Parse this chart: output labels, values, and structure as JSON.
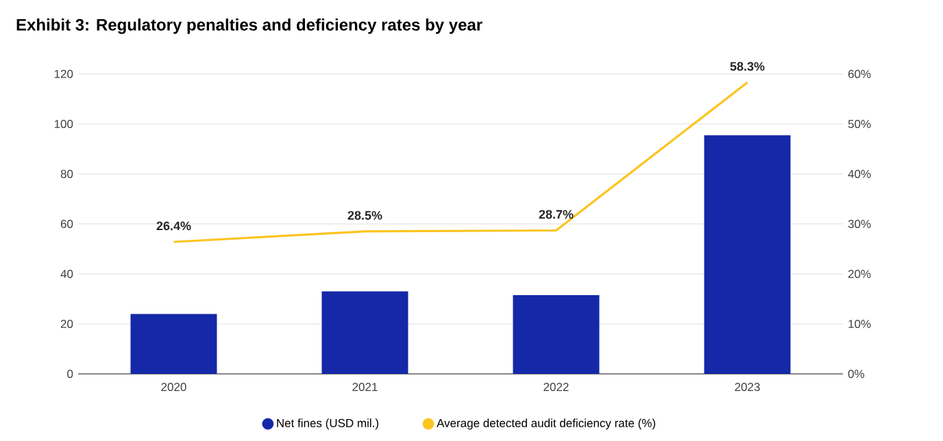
{
  "chart_data": {
    "type": "bar",
    "title": "Exhibit 3: Regulatory penalties and deficiency rates by year",
    "categories": [
      "2020",
      "2021",
      "2022",
      "2023"
    ],
    "series": [
      {
        "name": "Net fines (USD mil.)",
        "color": "#1428a8",
        "values": [
          24,
          33,
          31.5,
          95.5
        ]
      },
      {
        "name": "Average detected audit deficiency rate (%)",
        "type": "line",
        "axis": "y2",
        "color": "#fcc41f",
        "values": [
          26.4,
          28.5,
          28.7,
          58.3
        ],
        "value_labels": [
          "26.4%",
          "28.5%",
          "28.7%",
          "58.3%"
        ]
      }
    ],
    "ylim": [
      0,
      120
    ],
    "yticks": [
      0,
      20,
      40,
      60,
      80,
      100,
      120
    ],
    "y2lim": [
      0,
      60
    ],
    "y2ticks": [
      {
        "value": 0,
        "label": "0%"
      },
      {
        "value": 10,
        "label": "10%"
      },
      {
        "value": 20,
        "label": "20%"
      },
      {
        "value": 30,
        "label": "30%"
      },
      {
        "value": 40,
        "label": "40%"
      },
      {
        "value": 50,
        "label": "50%"
      },
      {
        "value": 60,
        "label": "60%"
      }
    ],
    "grid": "y",
    "legend": "bottom",
    "marker": "none"
  }
}
